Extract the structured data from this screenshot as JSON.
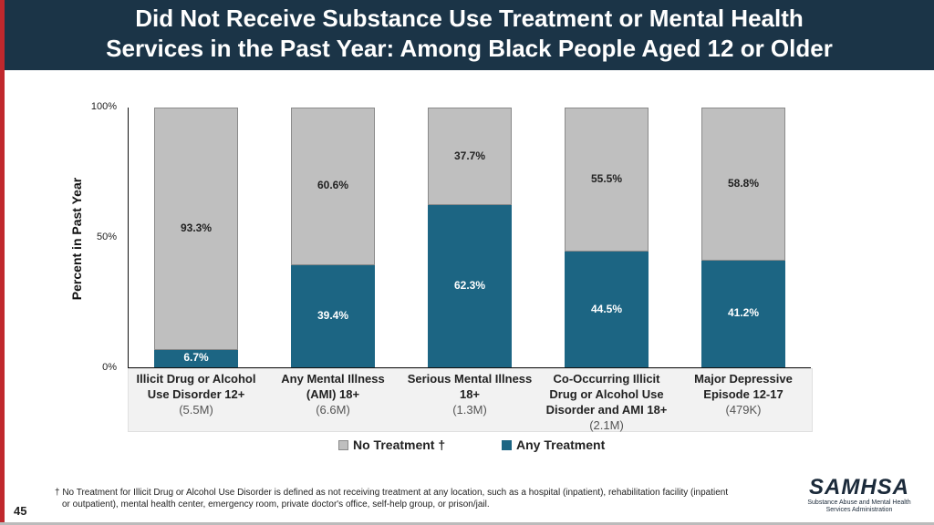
{
  "title": {
    "line1": "Did Not Receive Substance Use Treatment or Mental Health",
    "line2": "Services in the Past Year: Among Black People Aged 12 or Older"
  },
  "chart_data": {
    "type": "bar",
    "stacked": true,
    "ylabel": "Percent in Past Year",
    "ylim": [
      0,
      100
    ],
    "yticks": [
      "0%",
      "50%",
      "100%"
    ],
    "categories": [
      "Illicit Drug or Alcohol Use Disorder 12+",
      "Any Mental Illness (AMI) 18+",
      "Serious Mental Illness 18+",
      "Co-Occurring Illicit Drug or Alcohol Use Disorder and AMI 18+",
      "Major Depressive Episode 12-17"
    ],
    "category_lines": [
      [
        "Illicit Drug or Alcohol",
        "Use Disorder 12+"
      ],
      [
        "Any Mental Illness",
        "(AMI) 18+"
      ],
      [
        "Serious Mental Illness",
        "18+"
      ],
      [
        "Co-Occurring Illicit",
        "Drug or Alcohol Use",
        "Disorder and AMI 18+"
      ],
      [
        "Major Depressive",
        "Episode 12-17"
      ]
    ],
    "category_counts": [
      "(5.5M)",
      "(6.6M)",
      "(1.3M)",
      "(2.1M)",
      "(479K)"
    ],
    "series": [
      {
        "name": "Any Treatment",
        "values": [
          6.7,
          39.4,
          62.3,
          44.5,
          41.2
        ],
        "labels": [
          "6.7%",
          "39.4%",
          "62.3%",
          "44.5%",
          "41.2%"
        ],
        "color": "#1c6583"
      },
      {
        "name": "No Treatment †",
        "values": [
          93.3,
          60.6,
          37.7,
          55.5,
          58.8
        ],
        "labels": [
          "93.3%",
          "60.6%",
          "37.7%",
          "55.5%",
          "58.8%"
        ],
        "color": "#bfbfbf"
      }
    ],
    "legend": {
      "items": [
        "No Treatment †",
        "Any Treatment"
      ],
      "placement": "bottom"
    }
  },
  "footnote": {
    "line1": "† No Treatment for Illicit Drug or Alcohol Use Disorder is defined as not receiving treatment at any location, such as a hospital (inpatient), rehabilitation facility (inpatient",
    "line2": "or outpatient), mental health center, emergency room, private doctor's office, self-help group, or prison/jail."
  },
  "slide_number": "45",
  "logo": {
    "main": "SAMHSA",
    "line1": "Substance Abuse and Mental Health",
    "line2": "Services Administration"
  }
}
